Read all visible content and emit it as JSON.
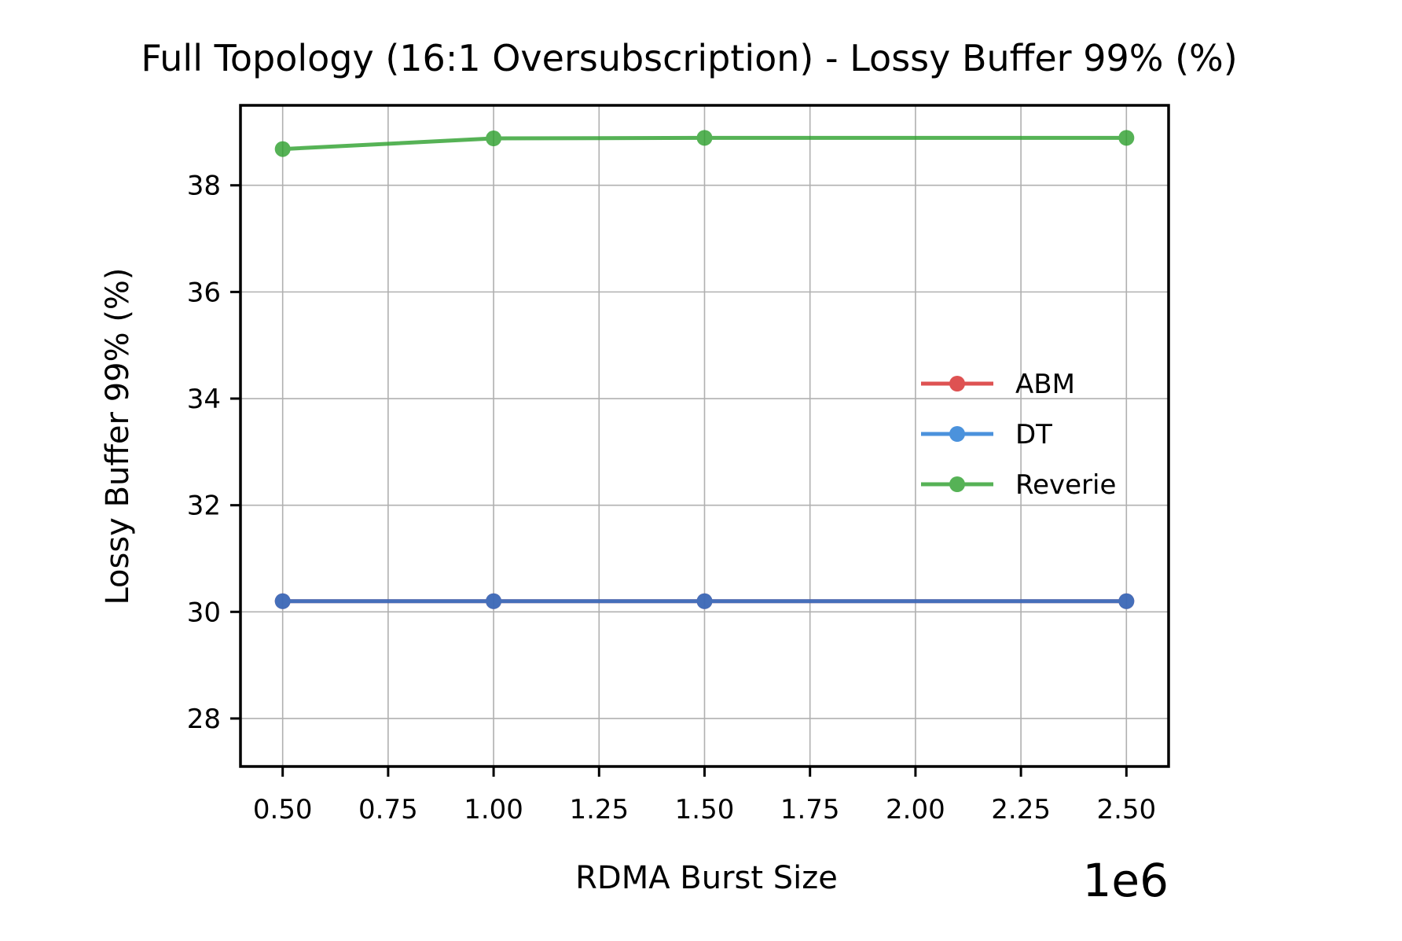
{
  "chart_data": {
    "type": "line",
    "title": "Full Topology (16:1 Oversubscription) - Lossy Buffer 99% (%)",
    "xlabel": "RDMA Burst Size",
    "ylabel": "Lossy Buffer 99% (%)",
    "x_offset_label": "1e6",
    "x": [
      500000,
      1000000,
      1500000,
      2500000
    ],
    "xlim": [
      400000,
      2600000
    ],
    "ylim": [
      27.1,
      39.5
    ],
    "xticks": [
      500000,
      750000,
      1000000,
      1250000,
      1500000,
      1750000,
      2000000,
      2250000,
      2500000
    ],
    "xtick_labels": [
      "0.50",
      "0.75",
      "1.00",
      "1.25",
      "1.50",
      "1.75",
      "2.00",
      "2.25",
      "2.50"
    ],
    "yticks": [
      28,
      30,
      32,
      34,
      36,
      38
    ],
    "ytick_labels": [
      "28",
      "30",
      "32",
      "34",
      "36",
      "38"
    ],
    "grid": true,
    "legend_position": "center-right",
    "series": [
      {
        "name": "ABM",
        "color": "#d62728",
        "values": [
          30.2,
          30.2,
          30.2,
          30.2
        ]
      },
      {
        "name": "DT",
        "color": "#1f77d4",
        "values": [
          30.2,
          30.2,
          30.2,
          30.2
        ]
      },
      {
        "name": "Reverie",
        "color": "#2ca02c",
        "values": [
          38.68,
          38.88,
          38.89,
          38.89
        ]
      }
    ]
  }
}
